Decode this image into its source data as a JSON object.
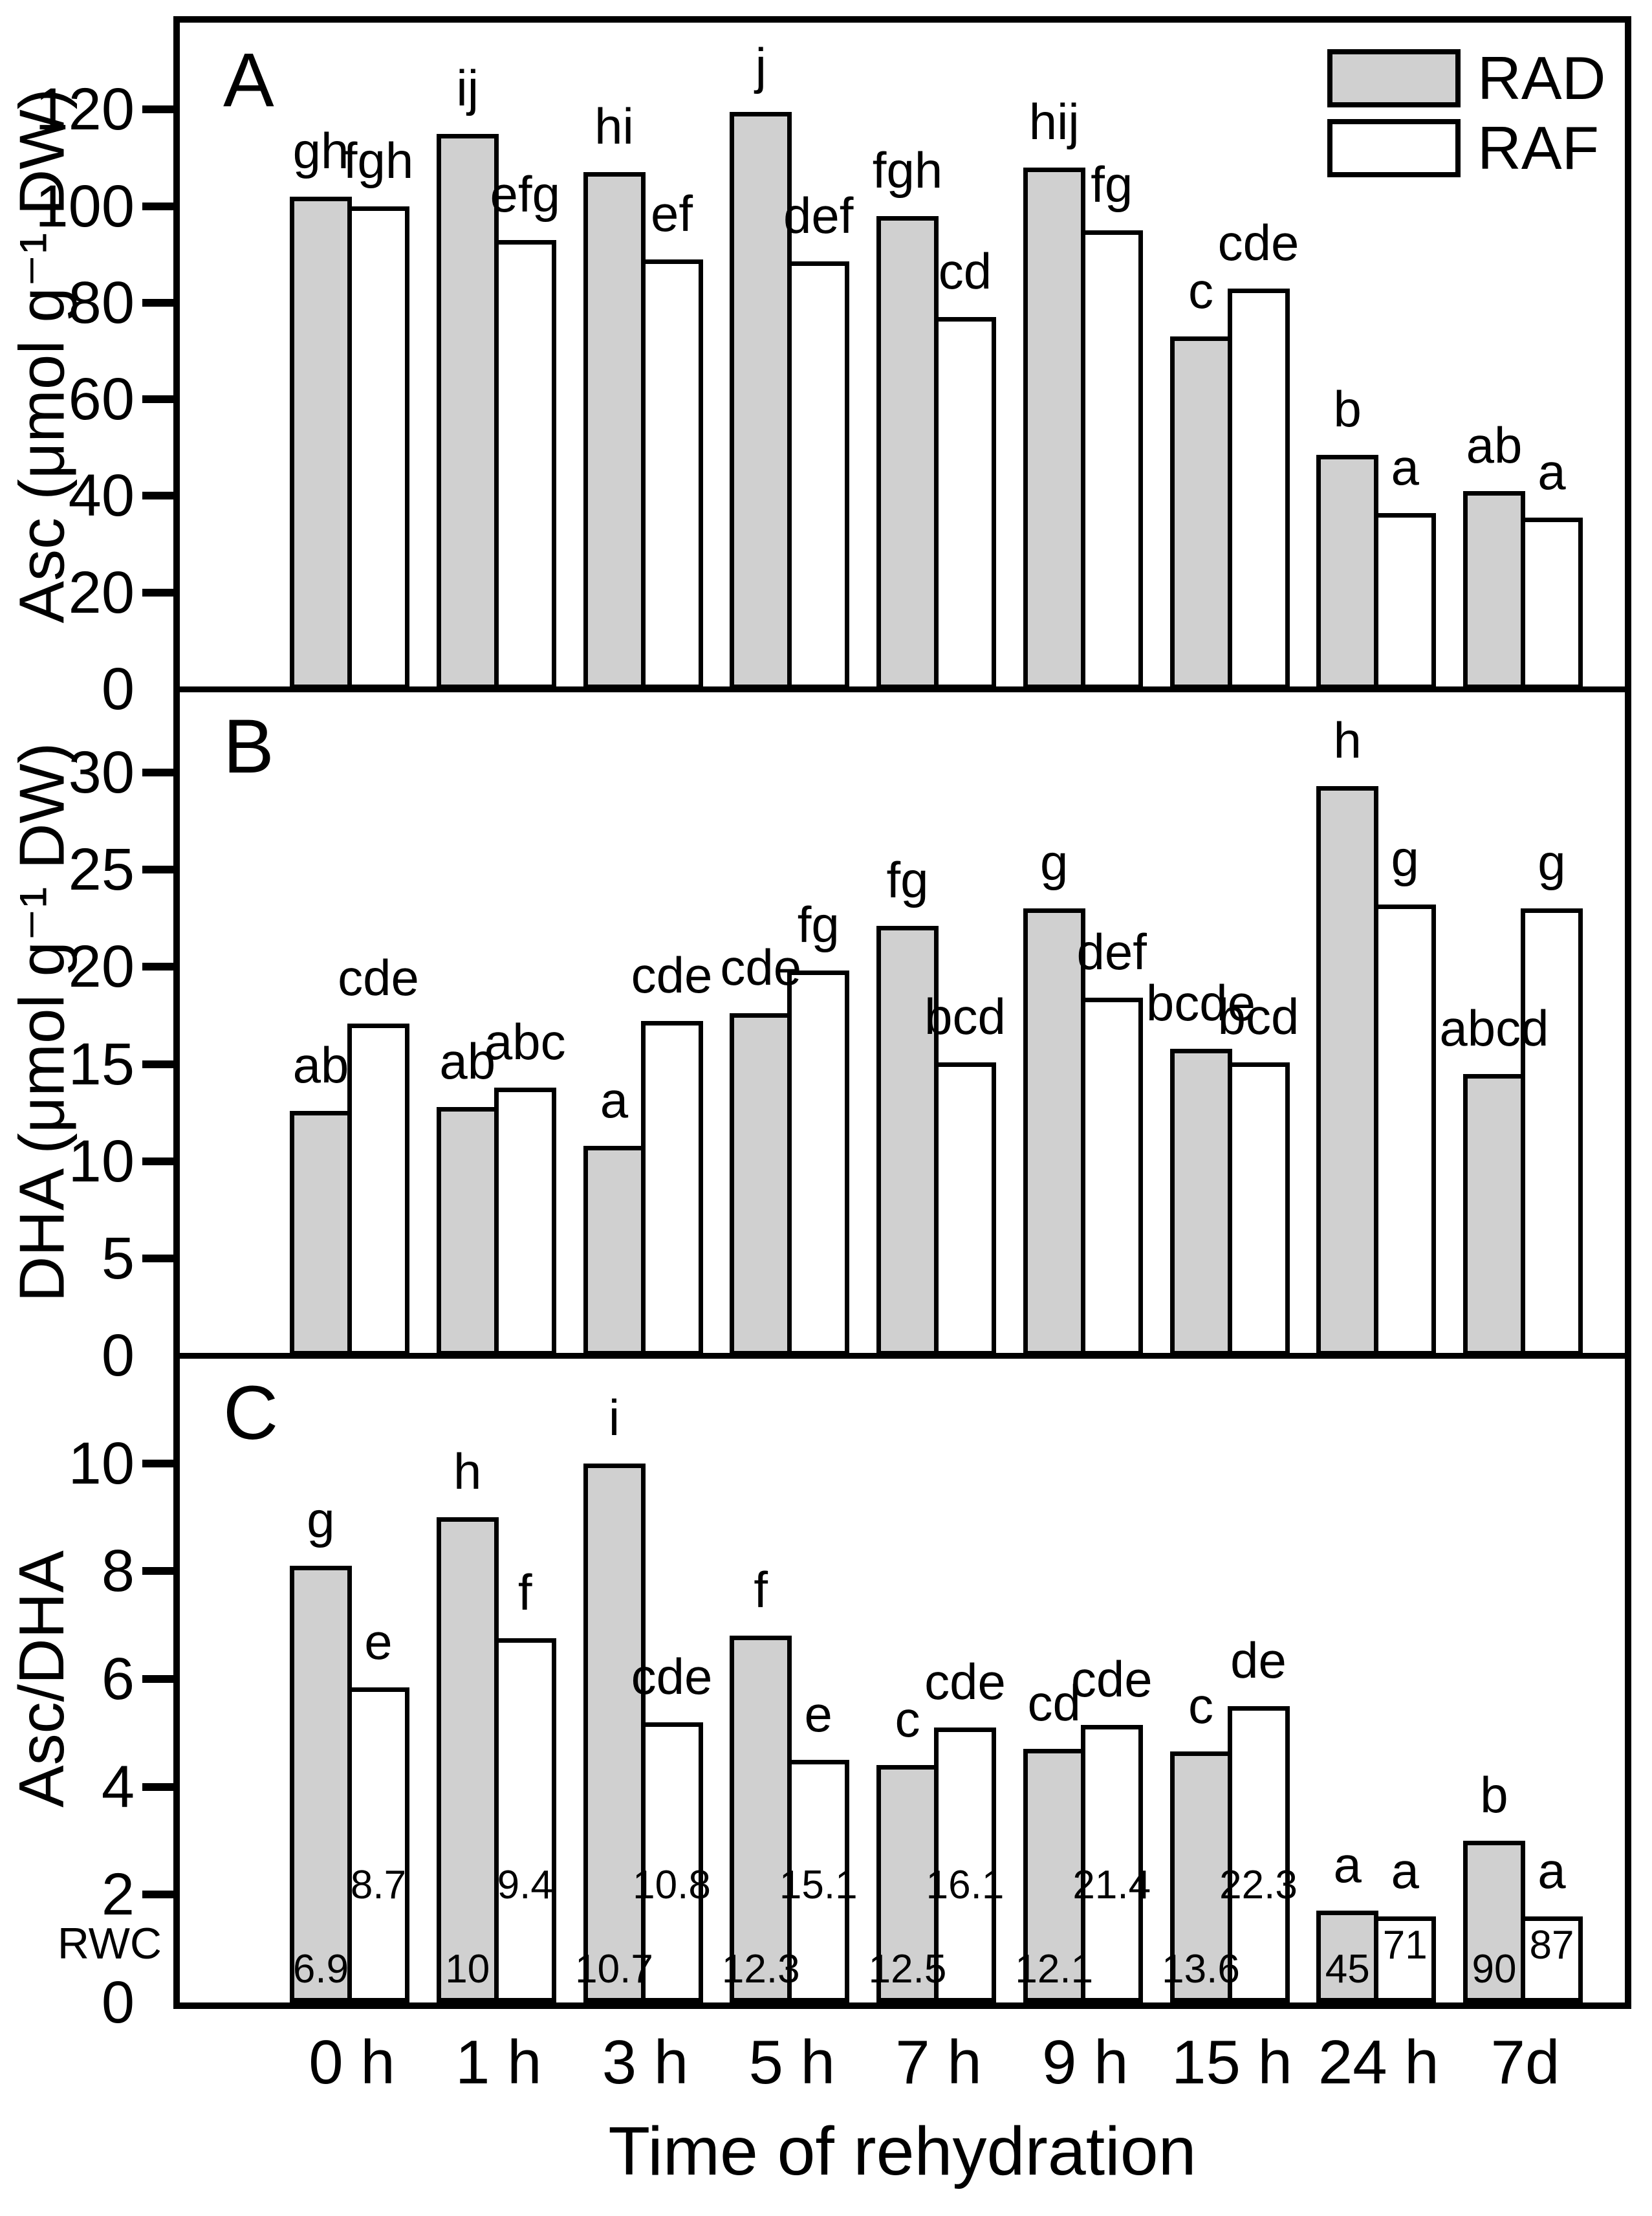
{
  "figure": {
    "xlabel": "Time of rehydration",
    "categories": [
      "0 h",
      "1 h",
      "3 h",
      "5 h",
      "7 h",
      "9 h",
      "15 h",
      "24 h",
      "7d"
    ],
    "legend": {
      "rad_label": "RAD",
      "raf_label": "RAF"
    },
    "rwc_axis_label": "RWC",
    "panel_letters": [
      "A",
      "B",
      "C"
    ],
    "colors": {
      "rad_fill": "#d0d0d0",
      "raf_fill": "#ffffff",
      "axis": "#000000",
      "background": "#ffffff"
    }
  },
  "chart_data": [
    {
      "type": "bar",
      "panel": "A",
      "title": "",
      "xlabel": "Time of rehydration",
      "ylabel": "Asc (μmol g⁻¹ DW)",
      "ylim": [
        0,
        138
      ],
      "yticks": [
        0,
        20,
        40,
        60,
        80,
        100,
        120
      ],
      "grid": false,
      "legend_position": "top-right",
      "categories": [
        "0 h",
        "1 h",
        "3 h",
        "5 h",
        "7 h",
        "9 h",
        "15 h",
        "24 h",
        "7d"
      ],
      "series": [
        {
          "name": "RAD",
          "values": [
            102,
            115,
            107,
            119.5,
            98,
            108,
            73,
            48.5,
            41
          ],
          "letters": [
            "gh",
            "ij",
            "hi",
            "j",
            "fgh",
            "hij",
            "c",
            "b",
            "ab"
          ]
        },
        {
          "name": "RAF",
          "values": [
            100,
            93,
            89,
            88.5,
            77,
            95,
            83,
            36.5,
            35.5
          ],
          "letters": [
            "fgh",
            "efg",
            "ef",
            "def",
            "cd",
            "fg",
            "cde",
            "a",
            "a"
          ]
        }
      ]
    },
    {
      "type": "bar",
      "panel": "B",
      "title": "",
      "xlabel": "Time of rehydration",
      "ylabel": "DHA (μmol g⁻¹ DW)",
      "ylim": [
        0,
        34.3
      ],
      "yticks": [
        0,
        5,
        10,
        15,
        20,
        25,
        30
      ],
      "grid": false,
      "categories": [
        "0 h",
        "1 h",
        "3 h",
        "5 h",
        "7 h",
        "9 h",
        "15 h",
        "24 h",
        "7d"
      ],
      "series": [
        {
          "name": "RAD",
          "values": [
            12.6,
            12.8,
            10.8,
            17.6,
            22.1,
            23.0,
            15.8,
            29.3,
            14.5
          ],
          "letters": [
            "ab",
            "ab",
            "a",
            "cde",
            "fg",
            "g",
            "bcde",
            "h",
            "abcd"
          ]
        },
        {
          "name": "RAF",
          "values": [
            17.1,
            13.8,
            17.2,
            19.8,
            15.1,
            18.4,
            15.1,
            23.2,
            23.0
          ],
          "letters": [
            "cde",
            "abc",
            "cde",
            "fg",
            "bcd",
            "def",
            "bcd",
            "g",
            "g"
          ]
        }
      ]
    },
    {
      "type": "bar",
      "panel": "C",
      "title": "",
      "xlabel": "Time of rehydration",
      "ylabel": "Asc/DHA",
      "ylim": [
        0,
        12
      ],
      "yticks": [
        0,
        2,
        4,
        6,
        8,
        10
      ],
      "grid": false,
      "categories": [
        "0 h",
        "1 h",
        "3 h",
        "5 h",
        "7 h",
        "9 h",
        "15 h",
        "24 h",
        "7d"
      ],
      "rwc_label": "RWC",
      "series": [
        {
          "name": "RAD",
          "values": [
            8.1,
            9.0,
            10.0,
            6.8,
            4.4,
            4.7,
            4.65,
            1.7,
            3.0
          ],
          "letters": [
            "g",
            "h",
            "i",
            "f",
            "c",
            "cd",
            "c",
            "a",
            "b"
          ],
          "rwc": [
            "6.9",
            "10",
            "10.7",
            "12.3",
            "12.5",
            "12.1",
            "13.6",
            "45",
            "90"
          ]
        },
        {
          "name": "RAF",
          "values": [
            5.85,
            6.75,
            5.2,
            4.5,
            5.1,
            5.15,
            5.5,
            1.6,
            1.6
          ],
          "letters": [
            "e",
            "f",
            "cde",
            "e",
            "cde",
            "cde",
            "de",
            "a",
            "a"
          ],
          "rwc": [
            "8.7",
            "9.4",
            "10.8",
            "15.1",
            "16.1",
            "21.4",
            "22.3",
            "71",
            "87"
          ]
        }
      ]
    }
  ]
}
